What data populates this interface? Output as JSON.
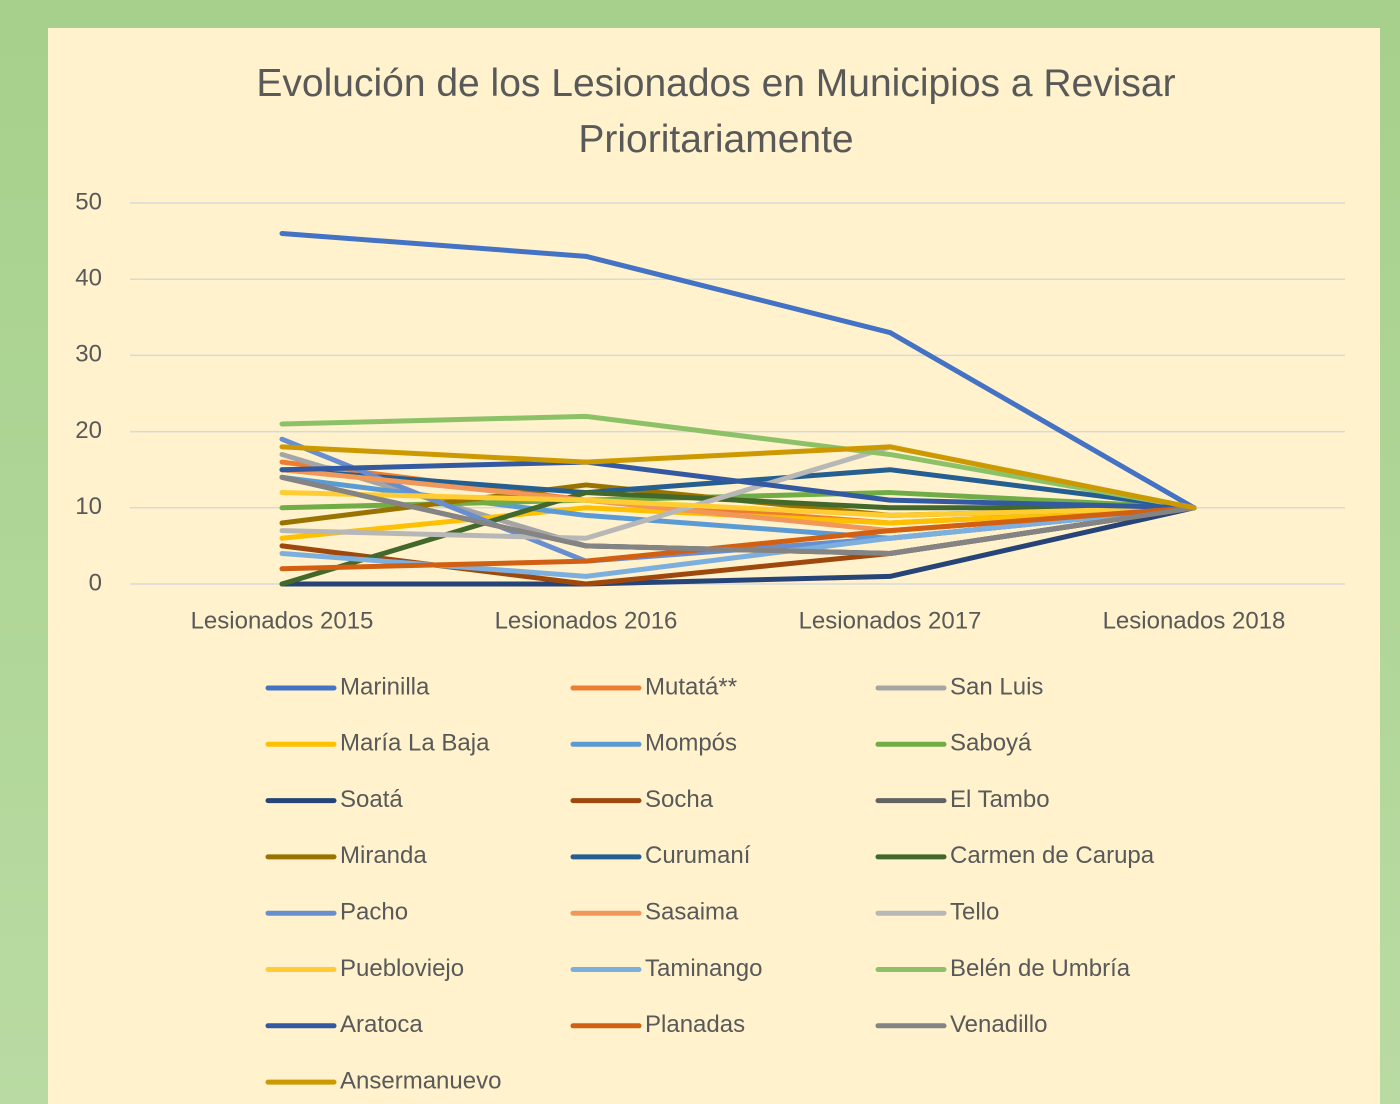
{
  "chart_data": {
    "type": "line",
    "title": "Evolución de los Lesionados en Municipios a Revisar Prioritariamente",
    "categories": [
      "Lesionados 2015",
      "Lesionados 2016",
      "Lesionados 2017",
      "Lesionados 2018"
    ],
    "ylim": [
      0,
      50
    ],
    "yticks": [
      0,
      10,
      20,
      30,
      40,
      50
    ],
    "grid": true,
    "legend": "bottom",
    "series": [
      {
        "name": "Marinilla",
        "color": "#4472c4",
        "values": [
          46,
          43,
          33,
          10
        ]
      },
      {
        "name": "Mutatá**",
        "color": "#ed7d31",
        "values": [
          16,
          11,
          8,
          10
        ]
      },
      {
        "name": "San Luis",
        "color": "#a5a5a5",
        "values": [
          17,
          5,
          4,
          10
        ]
      },
      {
        "name": "María La Baja",
        "color": "#ffc000",
        "values": [
          6,
          10,
          8,
          10
        ]
      },
      {
        "name": "Mompós",
        "color": "#5b9bd5",
        "values": [
          14,
          9,
          6,
          10
        ]
      },
      {
        "name": "Saboyá",
        "color": "#70ad47",
        "values": [
          10,
          11,
          12,
          10
        ]
      },
      {
        "name": "Soatá",
        "color": "#264478",
        "values": [
          0,
          0,
          1,
          10
        ]
      },
      {
        "name": "Socha",
        "color": "#9e480e",
        "values": [
          5,
          0,
          4,
          10
        ]
      },
      {
        "name": "El Tambo",
        "color": "#636363",
        "values": [
          14,
          5,
          4,
          10
        ]
      },
      {
        "name": "Miranda",
        "color": "#997300",
        "values": [
          8,
          13,
          9,
          10
        ]
      },
      {
        "name": "Curumaní",
        "color": "#255e91",
        "values": [
          15,
          12,
          15,
          10
        ]
      },
      {
        "name": "Carmen de Carupa",
        "color": "#43682b",
        "values": [
          0,
          12,
          10,
          10
        ]
      },
      {
        "name": "Pacho",
        "color": "#698ed0",
        "values": [
          19,
          3,
          6,
          10
        ]
      },
      {
        "name": "Sasaima",
        "color": "#f1975a",
        "values": [
          15,
          11,
          7,
          10
        ]
      },
      {
        "name": "Tello",
        "color": "#b7b7b7",
        "values": [
          7,
          6,
          18,
          10
        ]
      },
      {
        "name": "Puebloviejo",
        "color": "#ffcd33",
        "values": [
          12,
          11,
          9,
          10
        ]
      },
      {
        "name": "Taminango",
        "color": "#7cafdd",
        "values": [
          4,
          1,
          6,
          10
        ]
      },
      {
        "name": "Belén de Umbría",
        "color": "#8cc168",
        "values": [
          21,
          22,
          17,
          10
        ]
      },
      {
        "name": "Aratoca",
        "color": "#335aa1",
        "values": [
          15,
          16,
          11,
          10
        ]
      },
      {
        "name": "Planadas",
        "color": "#d26012",
        "values": [
          2,
          3,
          7,
          10
        ]
      },
      {
        "name": "Venadillo",
        "color": "#848484",
        "values": [
          14,
          5,
          4,
          10
        ]
      },
      {
        "name": "Ansermanuevo",
        "color": "#cc9a00",
        "values": [
          18,
          16,
          18,
          10
        ]
      }
    ]
  }
}
